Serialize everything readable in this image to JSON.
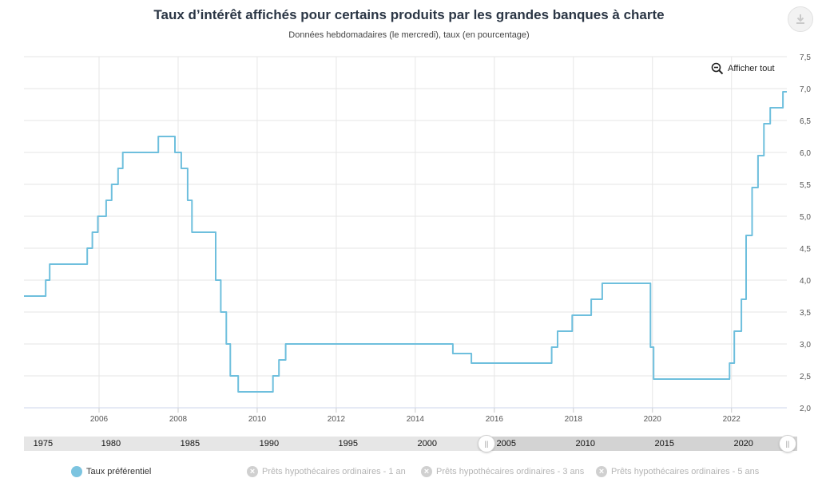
{
  "header": {
    "title": "Taux d’intérêt affichés pour certains produits par les grandes banques à charte",
    "subtitle": "Données hebdomadaires (le mercredi), taux (en pourcentage)"
  },
  "toolbar": {
    "download_icon": "download-icon",
    "zoom_reset_label": "Afficher tout",
    "zoom_icon": "zoom-out-icon"
  },
  "navigator": {
    "labels": [
      "1975",
      "1980",
      "1985",
      "1990",
      "1995",
      "2000",
      "2005",
      "2010",
      "2015",
      "2020"
    ]
  },
  "legend": [
    {
      "label": "Taux préférentiel",
      "active": true,
      "color": "#7cc4e0"
    },
    {
      "label": "Prêts hypothécaires ordinaires - 1 an",
      "active": false
    },
    {
      "label": "Prêts hypothécaires ordinaires - 3 ans",
      "active": false
    },
    {
      "label": "Prêts hypothécaires ordinaires - 5 ans",
      "active": false
    }
  ],
  "chart_data": {
    "type": "line",
    "title": "Taux d’intérêt affichés pour certains produits par les grandes banques à charte",
    "subtitle": "Données hebdomadaires (le mercredi), taux (en pourcentage)",
    "x_ticks": [
      "2006",
      "2008",
      "2010",
      "2012",
      "2014",
      "2016",
      "2018",
      "2020",
      "2022"
    ],
    "y_ticks": [
      "2,0",
      "2,5",
      "3,0",
      "3,5",
      "4,0",
      "4,5",
      "5,0",
      "5,5",
      "6,0",
      "6,5",
      "7,0",
      "7,5"
    ],
    "xlim": [
      2004.1,
      2023.4
    ],
    "ylim": [
      2.0,
      7.5
    ],
    "y_axis_side": "right",
    "grid": true,
    "series": [
      {
        "name": "Taux préférentiel",
        "color": "#6ebfdd",
        "step": true,
        "points": [
          [
            2004.1,
            3.75
          ],
          [
            2004.65,
            4.0
          ],
          [
            2004.75,
            4.25
          ],
          [
            2005.7,
            4.5
          ],
          [
            2005.83,
            4.75
          ],
          [
            2005.97,
            5.0
          ],
          [
            2006.18,
            5.25
          ],
          [
            2006.32,
            5.5
          ],
          [
            2006.48,
            5.75
          ],
          [
            2006.6,
            6.0
          ],
          [
            2007.5,
            6.25
          ],
          [
            2007.92,
            6.0
          ],
          [
            2008.08,
            5.75
          ],
          [
            2008.24,
            5.25
          ],
          [
            2008.35,
            4.75
          ],
          [
            2008.95,
            4.0
          ],
          [
            2009.08,
            3.5
          ],
          [
            2009.22,
            3.0
          ],
          [
            2009.32,
            2.5
          ],
          [
            2009.52,
            2.25
          ],
          [
            2010.4,
            2.5
          ],
          [
            2010.55,
            2.75
          ],
          [
            2010.72,
            3.0
          ],
          [
            2014.95,
            2.85
          ],
          [
            2015.42,
            2.7
          ],
          [
            2017.45,
            2.95
          ],
          [
            2017.6,
            3.2
          ],
          [
            2017.97,
            3.45
          ],
          [
            2018.45,
            3.7
          ],
          [
            2018.73,
            3.95
          ],
          [
            2019.95,
            2.95
          ],
          [
            2020.03,
            2.45
          ],
          [
            2021.95,
            2.7
          ],
          [
            2022.07,
            3.2
          ],
          [
            2022.25,
            3.7
          ],
          [
            2022.37,
            4.7
          ],
          [
            2022.52,
            5.45
          ],
          [
            2022.67,
            5.95
          ],
          [
            2022.82,
            6.45
          ],
          [
            2022.98,
            6.7
          ],
          [
            2023.3,
            6.95
          ],
          [
            2023.4,
            6.95
          ]
        ]
      }
    ]
  }
}
